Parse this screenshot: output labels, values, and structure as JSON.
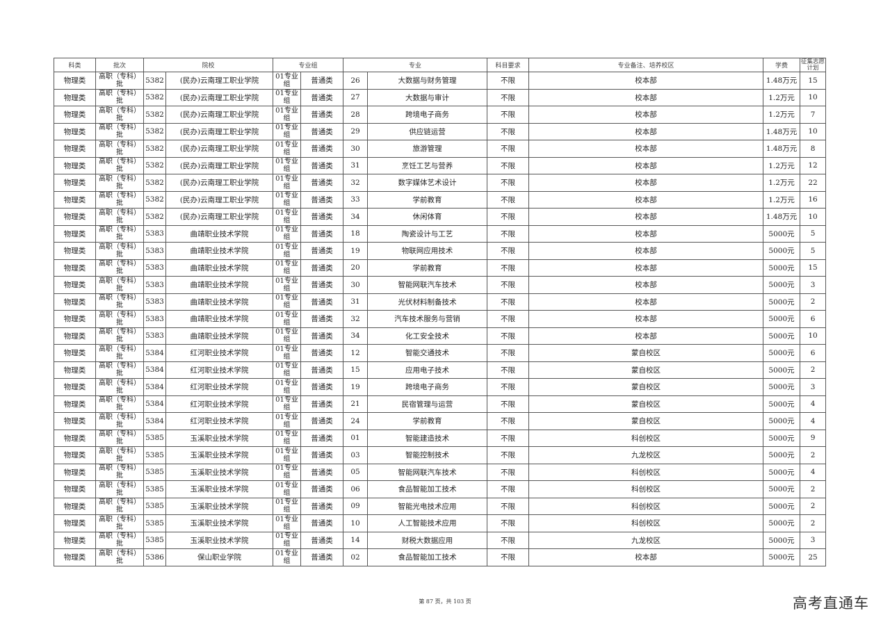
{
  "header": {
    "category": "科类",
    "batch": "批次",
    "school": "院校",
    "group": "专业组",
    "major": "专业",
    "subject_req": "科目要求",
    "remarks": "专业备注、培养校区",
    "tuition": "学费",
    "plan": "征集志愿计划"
  },
  "rows": [
    [
      "物理类",
      "高职（专科）批",
      "5382",
      "(民办)云南理工职业学院",
      "01专业组",
      "普通类",
      "26",
      "大数据与财务管理",
      "不限",
      "校本部",
      "1.48万元",
      "15"
    ],
    [
      "物理类",
      "高职（专科）批",
      "5382",
      "(民办)云南理工职业学院",
      "01专业组",
      "普通类",
      "27",
      "大数据与审计",
      "不限",
      "校本部",
      "1.2万元",
      "10"
    ],
    [
      "物理类",
      "高职（专科）批",
      "5382",
      "(民办)云南理工职业学院",
      "01专业组",
      "普通类",
      "28",
      "跨境电子商务",
      "不限",
      "校本部",
      "1.2万元",
      "7"
    ],
    [
      "物理类",
      "高职（专科）批",
      "5382",
      "(民办)云南理工职业学院",
      "01专业组",
      "普通类",
      "29",
      "供应链运营",
      "不限",
      "校本部",
      "1.48万元",
      "10"
    ],
    [
      "物理类",
      "高职（专科）批",
      "5382",
      "(民办)云南理工职业学院",
      "01专业组",
      "普通类",
      "30",
      "旅游管理",
      "不限",
      "校本部",
      "1.48万元",
      "8"
    ],
    [
      "物理类",
      "高职（专科）批",
      "5382",
      "(民办)云南理工职业学院",
      "01专业组",
      "普通类",
      "31",
      "烹饪工艺与营养",
      "不限",
      "校本部",
      "1.2万元",
      "12"
    ],
    [
      "物理类",
      "高职（专科）批",
      "5382",
      "(民办)云南理工职业学院",
      "01专业组",
      "普通类",
      "32",
      "数字媒体艺术设计",
      "不限",
      "校本部",
      "1.2万元",
      "22"
    ],
    [
      "物理类",
      "高职（专科）批",
      "5382",
      "(民办)云南理工职业学院",
      "01专业组",
      "普通类",
      "33",
      "学前教育",
      "不限",
      "校本部",
      "1.2万元",
      "16"
    ],
    [
      "物理类",
      "高职（专科）批",
      "5382",
      "(民办)云南理工职业学院",
      "01专业组",
      "普通类",
      "34",
      "休闲体育",
      "不限",
      "校本部",
      "1.48万元",
      "10"
    ],
    [
      "物理类",
      "高职（专科）批",
      "5383",
      "曲靖职业技术学院",
      "01专业组",
      "普通类",
      "18",
      "陶瓷设计与工艺",
      "不限",
      "校本部",
      "5000元",
      "5"
    ],
    [
      "物理类",
      "高职（专科）批",
      "5383",
      "曲靖职业技术学院",
      "01专业组",
      "普通类",
      "19",
      "物联网应用技术",
      "不限",
      "校本部",
      "5000元",
      "5"
    ],
    [
      "物理类",
      "高职（专科）批",
      "5383",
      "曲靖职业技术学院",
      "01专业组",
      "普通类",
      "20",
      "学前教育",
      "不限",
      "校本部",
      "5000元",
      "15"
    ],
    [
      "物理类",
      "高职（专科）批",
      "5383",
      "曲靖职业技术学院",
      "01专业组",
      "普通类",
      "30",
      "智能网联汽车技术",
      "不限",
      "校本部",
      "5000元",
      "3"
    ],
    [
      "物理类",
      "高职（专科）批",
      "5383",
      "曲靖职业技术学院",
      "01专业组",
      "普通类",
      "31",
      "光伏材料制备技术",
      "不限",
      "校本部",
      "5000元",
      "2"
    ],
    [
      "物理类",
      "高职（专科）批",
      "5383",
      "曲靖职业技术学院",
      "01专业组",
      "普通类",
      "32",
      "汽车技术服务与营销",
      "不限",
      "校本部",
      "5000元",
      "6"
    ],
    [
      "物理类",
      "高职（专科）批",
      "5383",
      "曲靖职业技术学院",
      "01专业组",
      "普通类",
      "34",
      "化工安全技术",
      "不限",
      "校本部",
      "5000元",
      "10"
    ],
    [
      "物理类",
      "高职（专科）批",
      "5384",
      "红河职业技术学院",
      "01专业组",
      "普通类",
      "12",
      "智能交通技术",
      "不限",
      "蒙自校区",
      "5000元",
      "6"
    ],
    [
      "物理类",
      "高职（专科）批",
      "5384",
      "红河职业技术学院",
      "01专业组",
      "普通类",
      "15",
      "应用电子技术",
      "不限",
      "蒙自校区",
      "5000元",
      "2"
    ],
    [
      "物理类",
      "高职（专科）批",
      "5384",
      "红河职业技术学院",
      "01专业组",
      "普通类",
      "19",
      "跨境电子商务",
      "不限",
      "蒙自校区",
      "5000元",
      "3"
    ],
    [
      "物理类",
      "高职（专科）批",
      "5384",
      "红河职业技术学院",
      "01专业组",
      "普通类",
      "21",
      "民宿管理与运营",
      "不限",
      "蒙自校区",
      "5000元",
      "4"
    ],
    [
      "物理类",
      "高职（专科）批",
      "5384",
      "红河职业技术学院",
      "01专业组",
      "普通类",
      "24",
      "学前教育",
      "不限",
      "蒙自校区",
      "5000元",
      "4"
    ],
    [
      "物理类",
      "高职（专科）批",
      "5385",
      "玉溪职业技术学院",
      "01专业组",
      "普通类",
      "01",
      "智能建造技术",
      "不限",
      "科创校区",
      "5000元",
      "9"
    ],
    [
      "物理类",
      "高职（专科）批",
      "5385",
      "玉溪职业技术学院",
      "01专业组",
      "普通类",
      "03",
      "智能控制技术",
      "不限",
      "九龙校区",
      "5000元",
      "2"
    ],
    [
      "物理类",
      "高职（专科）批",
      "5385",
      "玉溪职业技术学院",
      "01专业组",
      "普通类",
      "05",
      "智能网联汽车技术",
      "不限",
      "科创校区",
      "5000元",
      "4"
    ],
    [
      "物理类",
      "高职（专科）批",
      "5385",
      "玉溪职业技术学院",
      "01专业组",
      "普通类",
      "06",
      "食品智能加工技术",
      "不限",
      "科创校区",
      "5000元",
      "2"
    ],
    [
      "物理类",
      "高职（专科）批",
      "5385",
      "玉溪职业技术学院",
      "01专业组",
      "普通类",
      "09",
      "智能光电技术应用",
      "不限",
      "科创校区",
      "5000元",
      "2"
    ],
    [
      "物理类",
      "高职（专科）批",
      "5385",
      "玉溪职业技术学院",
      "01专业组",
      "普通类",
      "10",
      "人工智能技术应用",
      "不限",
      "科创校区",
      "5000元",
      "2"
    ],
    [
      "物理类",
      "高职（专科）批",
      "5385",
      "玉溪职业技术学院",
      "01专业组",
      "普通类",
      "14",
      "财税大数据应用",
      "不限",
      "九龙校区",
      "5000元",
      "3"
    ],
    [
      "物理类",
      "高职（专科）批",
      "5386",
      "保山职业学院",
      "01专业组",
      "普通类",
      "02",
      "食品智能加工技术",
      "不限",
      "校本部",
      "5000元",
      "25"
    ]
  ],
  "footer": {
    "page_info": "第 87 页，共 103 页"
  },
  "watermark": "高考直通车"
}
